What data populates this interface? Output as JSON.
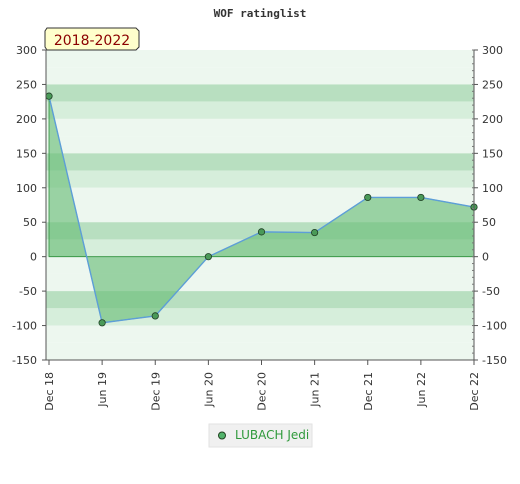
{
  "title": "WOF ratinglist",
  "period_badge": "2018-2022",
  "legend": {
    "items": [
      {
        "label": "LUBACH Jedi",
        "color": "#52b36b"
      }
    ]
  },
  "colors": {
    "band_dark": "#b8dfc0",
    "band_mid": "#d6eedb",
    "band_light": "#edf7ef",
    "fill": "#6bbf7a",
    "stroke": "#2c8f3b",
    "line": "#5d9ed8",
    "point": "#4a9a58",
    "badge_bg": "#ffffcc",
    "badge_text": "#8b0000"
  },
  "chart_data": {
    "type": "area",
    "categories": [
      "Dec 18",
      "Jun 19",
      "Dec 19",
      "Jun 20",
      "Dec 20",
      "Jun 21",
      "Dec 21",
      "Jun 22",
      "Dec 22"
    ],
    "series": [
      {
        "name": "LUBACH Jedi",
        "values": [
          233,
          -96,
          -86,
          0,
          36,
          35,
          86,
          86,
          72
        ]
      }
    ],
    "y_ticks": [
      300,
      250,
      200,
      150,
      100,
      50,
      0,
      -50,
      -100,
      -150
    ],
    "ylim": [
      -150,
      300
    ],
    "grid": true,
    "legend_position": "bottom-center"
  }
}
